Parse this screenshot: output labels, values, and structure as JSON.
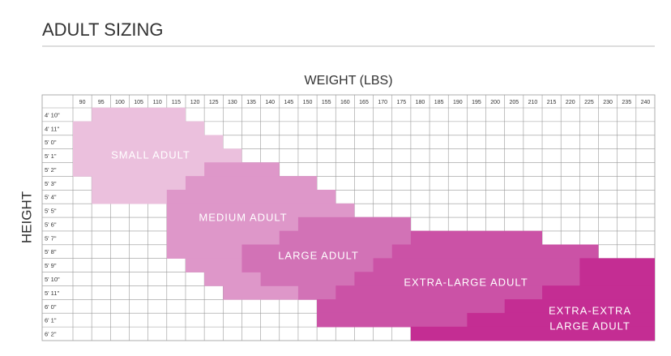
{
  "header": {
    "title": "ADULT SIZING"
  },
  "x_label": "WEIGHT (LBS)",
  "y_label": "HEIGHT",
  "weights": [
    90,
    95,
    100,
    105,
    110,
    115,
    120,
    125,
    130,
    135,
    140,
    145,
    150,
    155,
    160,
    165,
    170,
    175,
    180,
    185,
    190,
    195,
    200,
    205,
    210,
    215,
    220,
    225,
    230,
    235,
    240
  ],
  "heights": [
    "4' 10\"",
    "4' 11\"",
    "5' 0\"",
    "5' 1\"",
    "5' 2\"",
    "5' 3\"",
    "5' 4\"",
    "5' 5\"",
    "5' 6\"",
    "5' 7\"",
    "5' 8\"",
    "5' 9\"",
    "5' 10\"",
    "5' 11\"",
    "6' 0\"",
    "6' 1\"",
    "6' 2\""
  ],
  "regions": [
    {
      "label": [
        "SMALL ADULT"
      ],
      "color": "#ebc0dd",
      "spans": [
        {
          "height": "4' 10\"",
          "weights": [
            95,
            115
          ]
        },
        {
          "height": "4' 11\"",
          "weights": [
            90,
            120
          ]
        },
        {
          "height": "5' 0\"",
          "weights": [
            90,
            125
          ]
        },
        {
          "height": "5' 1\"",
          "weights": [
            90,
            130
          ]
        },
        {
          "height": "5' 2\"",
          "weights": [
            90,
            125
          ]
        },
        {
          "height": "5' 3\"",
          "weights": [
            95,
            125
          ]
        },
        {
          "height": "5' 4\"",
          "weights": [
            95,
            115
          ]
        }
      ]
    },
    {
      "label": [
        "MEDIUM ADULT"
      ],
      "color": "#de97c9",
      "spans": [
        {
          "height": "5' 2\"",
          "weights": [
            125,
            140
          ]
        },
        {
          "height": "5' 3\"",
          "weights": [
            120,
            150
          ]
        },
        {
          "height": "5' 4\"",
          "weights": [
            115,
            155
          ]
        },
        {
          "height": "5' 5\"",
          "weights": [
            115,
            160
          ]
        },
        {
          "height": "5' 6\"",
          "weights": [
            115,
            170
          ]
        },
        {
          "height": "5' 7\"",
          "weights": [
            115,
            175
          ]
        },
        {
          "height": "5' 8\"",
          "weights": [
            115,
            175
          ]
        },
        {
          "height": "5' 9\"",
          "weights": [
            120,
            175
          ]
        },
        {
          "height": "5' 10\"",
          "weights": [
            125,
            175
          ]
        },
        {
          "height": "5' 11\"",
          "weights": [
            130,
            150
          ]
        }
      ]
    },
    {
      "label": [
        "LARGE ADULT"
      ],
      "color": "#d272b6",
      "spans": [
        {
          "height": "5' 6\"",
          "weights": [
            150,
            175
          ]
        },
        {
          "height": "5' 7\"",
          "weights": [
            145,
            180
          ]
        },
        {
          "height": "5' 8\"",
          "weights": [
            135,
            180
          ]
        },
        {
          "height": "5' 9\"",
          "weights": [
            135,
            185
          ]
        },
        {
          "height": "5' 10\"",
          "weights": [
            140,
            195
          ]
        },
        {
          "height": "5' 11\"",
          "weights": [
            150,
            210
          ]
        },
        {
          "height": "6' 0\"",
          "weights": [
            155,
            215
          ]
        },
        {
          "height": "6' 1\"",
          "weights": [
            155,
            220
          ]
        }
      ]
    },
    {
      "label": [
        "EXTRA-LARGE ADULT"
      ],
      "color": "#cb52a6",
      "spans": [
        {
          "height": "5' 7\"",
          "weights": [
            180,
            210
          ]
        },
        {
          "height": "5' 8\"",
          "weights": [
            175,
            225
          ]
        },
        {
          "height": "5' 9\"",
          "weights": [
            170,
            225
          ]
        },
        {
          "height": "5' 10\"",
          "weights": [
            165,
            230
          ]
        },
        {
          "height": "5' 11\"",
          "weights": [
            160,
            230
          ]
        },
        {
          "height": "6' 0\"",
          "weights": [
            155,
            230
          ]
        },
        {
          "height": "6' 1\"",
          "weights": [
            155,
            235
          ]
        },
        {
          "height": "6' 2\"",
          "weights": [
            180,
            225
          ]
        }
      ]
    },
    {
      "label": [
        "EXTRA-EXTRA",
        "LARGE ADULT"
      ],
      "color": "#c42d93",
      "spans": [
        {
          "height": "5' 9\"",
          "weights": [
            225,
            240
          ]
        },
        {
          "height": "5' 10\"",
          "weights": [
            225,
            240
          ]
        },
        {
          "height": "5' 11\"",
          "weights": [
            215,
            240
          ]
        },
        {
          "height": "6' 0\"",
          "weights": [
            205,
            240
          ]
        },
        {
          "height": "6' 1\"",
          "weights": [
            195,
            240
          ]
        },
        {
          "height": "6' 2\"",
          "weights": [
            180,
            240
          ]
        }
      ]
    }
  ]
}
